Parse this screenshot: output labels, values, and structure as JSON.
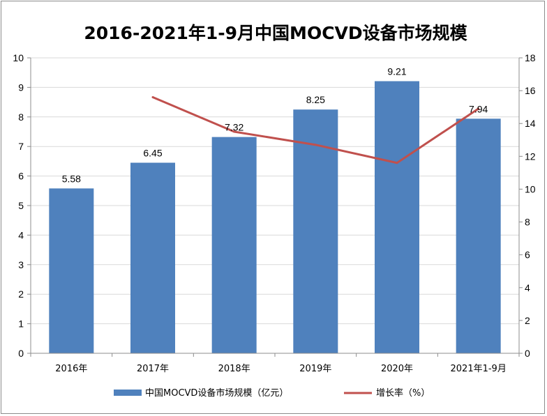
{
  "chart_data": {
    "type": "bar",
    "title": "2016-2021年1-9月中国MOCVD设备市场规模",
    "categories": [
      "2016年",
      "2017年",
      "2018年",
      "2019年",
      "2020年",
      "2021年1-9月"
    ],
    "series": [
      {
        "name": "中国MOCVD设备市场规模（亿元）",
        "type": "bar",
        "axis": "left",
        "values": [
          5.58,
          6.45,
          7.32,
          8.25,
          9.21,
          7.94
        ],
        "data_labels": [
          "5.58",
          "6.45",
          "7.32",
          "8.25",
          "9.21",
          "7.94"
        ]
      },
      {
        "name": "增长率（%）",
        "type": "line",
        "axis": "right",
        "values": [
          null,
          15.6,
          13.5,
          12.7,
          11.6,
          14.9
        ]
      }
    ],
    "ylim_left": [
      0,
      10
    ],
    "yticks_left": [
      "0",
      "1",
      "2",
      "3",
      "4",
      "5",
      "6",
      "7",
      "8",
      "9",
      "10"
    ],
    "ylim_right": [
      0,
      18
    ],
    "yticks_right": [
      "0",
      "2",
      "4",
      "6",
      "8",
      "10",
      "12",
      "14",
      "16",
      "18"
    ],
    "grid": true,
    "legend_position": "bottom",
    "colors": {
      "bar": "#4f81bd",
      "line": "#c0504d",
      "grid": "#d9d9d9",
      "axis": "#8c8c8c"
    }
  }
}
